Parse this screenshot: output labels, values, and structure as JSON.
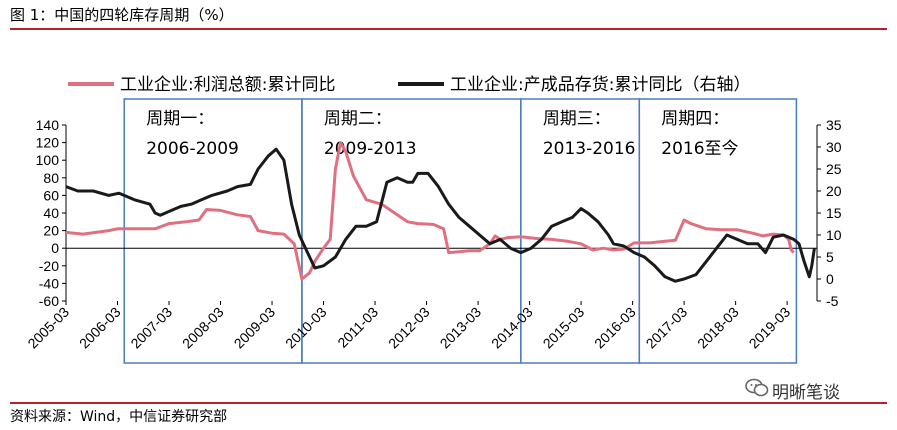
{
  "figure": {
    "title": "图 1：中国的四轮库存周期（%）",
    "source": "资料来源：Wind，中信证券研究部",
    "watermark": "明晰笔谈"
  },
  "chart_data": {
    "type": "line",
    "legend": [
      {
        "name": "工业企业:利润总额:累计同比",
        "color": "#e07080",
        "axis": "left"
      },
      {
        "name": "工业企业:产成品存货:累计同比（右轴）",
        "color": "#1a1a1a",
        "axis": "right"
      }
    ],
    "legend_placement": "top",
    "y_left": {
      "min": -60,
      "max": 140,
      "step": 20,
      "ticks": [
        "140",
        "120",
        "100",
        "80",
        "60",
        "40",
        "20",
        "0",
        "-20",
        "-40",
        "-60"
      ]
    },
    "y_right": {
      "min": -5,
      "max": 35,
      "step": 5,
      "ticks": [
        "35",
        "30",
        "25",
        "20",
        "15",
        "10",
        "5",
        "0",
        "-5"
      ]
    },
    "x_ticks": [
      "2005-03",
      "2006-03",
      "2007-03",
      "2008-03",
      "2009-03",
      "2010-03",
      "2011-03",
      "2012-03",
      "2013-03",
      "2014-03",
      "2015-03",
      "2016-03",
      "2017-03",
      "2018-03",
      "2019-03"
    ],
    "cycles": [
      {
        "label": "周期一：",
        "range": "2006-2009",
        "start": 2006.3,
        "end": 2009.75
      },
      {
        "label": "周期二：",
        "range": "2009-2013",
        "start": 2009.75,
        "end": 2014.0
      },
      {
        "label": "周期三：",
        "range": "2013-2016",
        "start": 2014.0,
        "end": 2016.3
      },
      {
        "label": "周期四：",
        "range": "2016至今",
        "start": 2016.3,
        "end": 2019.35
      }
    ],
    "series": [
      {
        "name": "工业企业:利润总额:累计同比",
        "axis": "left",
        "points": [
          [
            2005.17,
            18
          ],
          [
            2005.5,
            16
          ],
          [
            2006.0,
            20
          ],
          [
            2006.17,
            22
          ],
          [
            2006.5,
            22
          ],
          [
            2006.9,
            22
          ],
          [
            2007.17,
            28
          ],
          [
            2007.5,
            30
          ],
          [
            2007.75,
            32
          ],
          [
            2007.9,
            44
          ],
          [
            2008.17,
            43
          ],
          [
            2008.5,
            38
          ],
          [
            2008.75,
            36
          ],
          [
            2008.9,
            20
          ],
          [
            2009.17,
            17
          ],
          [
            2009.4,
            16
          ],
          [
            2009.6,
            5
          ],
          [
            2009.75,
            -35
          ],
          [
            2009.9,
            -28
          ],
          [
            2010.0,
            -15
          ],
          [
            2010.17,
            0
          ],
          [
            2010.3,
            10
          ],
          [
            2010.4,
            90
          ],
          [
            2010.5,
            120
          ],
          [
            2010.6,
            110
          ],
          [
            2010.75,
            82
          ],
          [
            2011.0,
            55
          ],
          [
            2011.3,
            50
          ],
          [
            2011.6,
            38
          ],
          [
            2011.8,
            30
          ],
          [
            2012.0,
            28
          ],
          [
            2012.3,
            27
          ],
          [
            2012.5,
            22
          ],
          [
            2012.6,
            -5
          ],
          [
            2012.8,
            -4
          ],
          [
            2013.0,
            -3
          ],
          [
            2013.2,
            -3
          ],
          [
            2013.4,
            5
          ],
          [
            2013.5,
            14
          ],
          [
            2013.6,
            10
          ],
          [
            2013.75,
            12
          ],
          [
            2014.0,
            13
          ],
          [
            2014.3,
            11
          ],
          [
            2014.6,
            10
          ],
          [
            2014.9,
            8
          ],
          [
            2015.17,
            5
          ],
          [
            2015.4,
            -2
          ],
          [
            2015.6,
            0
          ],
          [
            2015.8,
            -2
          ],
          [
            2016.0,
            -1
          ],
          [
            2016.2,
            6
          ],
          [
            2016.5,
            6
          ],
          [
            2016.8,
            8
          ],
          [
            2017.0,
            9
          ],
          [
            2017.17,
            32
          ],
          [
            2017.3,
            28
          ],
          [
            2017.6,
            22
          ],
          [
            2017.9,
            21
          ],
          [
            2018.2,
            21
          ],
          [
            2018.5,
            17
          ],
          [
            2018.7,
            14
          ],
          [
            2018.9,
            16
          ],
          [
            2019.1,
            15
          ],
          [
            2019.2,
            10
          ],
          [
            2019.25,
            -2
          ],
          [
            2019.3,
            -5
          ]
        ]
      },
      {
        "name": "工业企业:产成品存货:累计同比（右轴）",
        "axis": "right",
        "points": [
          [
            2005.17,
            21
          ],
          [
            2005.4,
            20
          ],
          [
            2005.7,
            20
          ],
          [
            2006.0,
            19
          ],
          [
            2006.2,
            19.5
          ],
          [
            2006.5,
            18
          ],
          [
            2006.8,
            17
          ],
          [
            2006.9,
            15
          ],
          [
            2007.0,
            14.5
          ],
          [
            2007.2,
            15.5
          ],
          [
            2007.4,
            16.5
          ],
          [
            2007.6,
            17
          ],
          [
            2007.8,
            18
          ],
          [
            2008.0,
            19
          ],
          [
            2008.3,
            20
          ],
          [
            2008.5,
            21
          ],
          [
            2008.75,
            21.5
          ],
          [
            2008.9,
            25
          ],
          [
            2009.1,
            28
          ],
          [
            2009.25,
            29.5
          ],
          [
            2009.4,
            27
          ],
          [
            2009.55,
            17
          ],
          [
            2009.7,
            10
          ],
          [
            2009.9,
            5
          ],
          [
            2010.0,
            2.5
          ],
          [
            2010.17,
            3
          ],
          [
            2010.4,
            5
          ],
          [
            2010.6,
            9
          ],
          [
            2010.8,
            12
          ],
          [
            2011.0,
            12
          ],
          [
            2011.2,
            13
          ],
          [
            2011.4,
            22
          ],
          [
            2011.6,
            23
          ],
          [
            2011.8,
            22
          ],
          [
            2011.9,
            22
          ],
          [
            2012.0,
            24
          ],
          [
            2012.2,
            24
          ],
          [
            2012.4,
            21
          ],
          [
            2012.6,
            17
          ],
          [
            2012.8,
            14
          ],
          [
            2013.0,
            12
          ],
          [
            2013.2,
            10
          ],
          [
            2013.4,
            8
          ],
          [
            2013.6,
            9
          ],
          [
            2013.8,
            7
          ],
          [
            2014.0,
            6
          ],
          [
            2014.2,
            7
          ],
          [
            2014.4,
            9
          ],
          [
            2014.6,
            12
          ],
          [
            2014.8,
            13
          ],
          [
            2015.0,
            14
          ],
          [
            2015.17,
            16
          ],
          [
            2015.3,
            15
          ],
          [
            2015.5,
            13
          ],
          [
            2015.7,
            10
          ],
          [
            2015.8,
            8
          ],
          [
            2016.0,
            7.5
          ],
          [
            2016.2,
            6
          ],
          [
            2016.4,
            5
          ],
          [
            2016.6,
            3
          ],
          [
            2016.8,
            0.5
          ],
          [
            2017.0,
            -0.5
          ],
          [
            2017.17,
            0
          ],
          [
            2017.4,
            1
          ],
          [
            2017.6,
            4
          ],
          [
            2017.8,
            7
          ],
          [
            2018.0,
            10
          ],
          [
            2018.2,
            9
          ],
          [
            2018.4,
            8
          ],
          [
            2018.6,
            8
          ],
          [
            2018.75,
            6
          ],
          [
            2018.9,
            9.5
          ],
          [
            2019.1,
            10
          ],
          [
            2019.3,
            9
          ],
          [
            2019.4,
            8
          ],
          [
            2019.5,
            4
          ],
          [
            2019.6,
            0.5
          ],
          [
            2019.65,
            3
          ],
          [
            2019.7,
            7
          ]
        ]
      }
    ]
  }
}
